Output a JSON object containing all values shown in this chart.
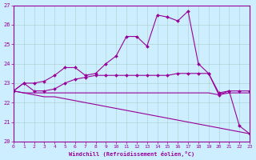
{
  "background_color": "#cceeff",
  "line_color": "#990099",
  "grid_color": "#aacccc",
  "xlabel": "Windchill (Refroidissement éolien,°C)",
  "xlabel_color": "#990099",
  "tick_color": "#990099",
  "ylim": [
    20,
    27
  ],
  "xlim": [
    0,
    23
  ],
  "yticks": [
    20,
    21,
    22,
    23,
    24,
    25,
    26,
    27
  ],
  "xticks": [
    0,
    1,
    2,
    3,
    4,
    5,
    6,
    7,
    8,
    9,
    10,
    11,
    12,
    13,
    14,
    15,
    16,
    17,
    18,
    19,
    20,
    21,
    22,
    23
  ],
  "curves": [
    {
      "x": [
        0,
        1,
        2,
        3,
        4,
        5,
        6,
        7,
        8,
        9,
        10,
        11,
        12,
        13,
        14,
        15,
        16,
        17,
        18,
        19,
        20,
        21,
        22,
        23
      ],
      "y": [
        22.6,
        22.5,
        22.4,
        22.3,
        22.3,
        22.2,
        22.1,
        22.0,
        21.9,
        21.8,
        21.7,
        21.6,
        21.5,
        21.4,
        21.3,
        21.2,
        21.1,
        21.0,
        20.9,
        20.8,
        20.7,
        20.6,
        20.5,
        20.4
      ],
      "marker": null,
      "lw": 0.8
    },
    {
      "x": [
        0,
        1,
        2,
        3,
        4,
        5,
        6,
        7,
        8,
        9,
        10,
        11,
        12,
        13,
        14,
        15,
        16,
        17,
        18,
        19,
        20,
        21,
        22,
        23
      ],
      "y": [
        22.6,
        22.5,
        22.5,
        22.5,
        22.5,
        22.5,
        22.5,
        22.5,
        22.5,
        22.5,
        22.5,
        22.5,
        22.5,
        22.5,
        22.5,
        22.5,
        22.5,
        22.5,
        22.5,
        22.5,
        22.4,
        22.5,
        22.5,
        22.5
      ],
      "marker": null,
      "lw": 0.8
    },
    {
      "x": [
        0,
        1,
        2,
        3,
        4,
        5,
        6,
        7,
        8,
        9,
        10,
        11,
        12,
        13,
        14,
        15,
        16,
        17,
        18,
        19,
        20,
        21,
        22,
        23
      ],
      "y": [
        22.6,
        23.0,
        22.6,
        22.6,
        22.7,
        23.0,
        23.2,
        23.3,
        23.4,
        23.4,
        23.4,
        23.4,
        23.4,
        23.4,
        23.4,
        23.4,
        23.5,
        23.5,
        23.5,
        23.5,
        22.5,
        22.6,
        22.6,
        22.6
      ],
      "marker": "D",
      "markersize": 2.0,
      "lw": 0.8
    },
    {
      "x": [
        0,
        1,
        2,
        3,
        4,
        5,
        6,
        7,
        8,
        9,
        10,
        11,
        12,
        13,
        14,
        15,
        16,
        17,
        18,
        19,
        20,
        21,
        22,
        23
      ],
      "y": [
        22.6,
        23.0,
        23.0,
        23.1,
        23.4,
        23.8,
        23.8,
        23.4,
        23.5,
        24.0,
        24.4,
        25.4,
        25.4,
        24.9,
        26.5,
        26.4,
        26.2,
        26.7,
        24.0,
        23.5,
        22.4,
        22.6,
        20.8,
        20.4
      ],
      "marker": "D",
      "markersize": 2.0,
      "lw": 0.8
    }
  ]
}
